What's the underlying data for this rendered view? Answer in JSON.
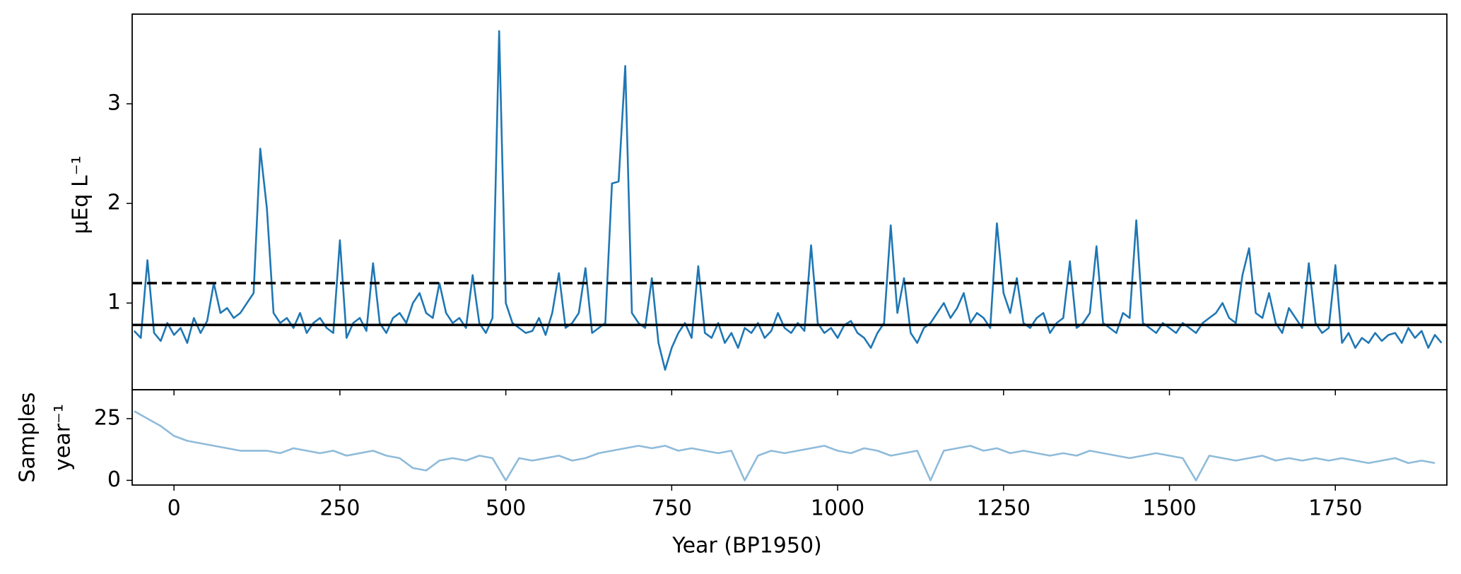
{
  "chart_data": [
    {
      "type": "line",
      "ylabel": "μEq L⁻¹",
      "color": "#1f77b4",
      "xlim": [
        -63,
        1918
      ],
      "ylim": [
        0.13,
        3.9
      ],
      "yticks": [
        1,
        2,
        3
      ],
      "hlines": [
        {
          "value": 0.78,
          "style": "solid"
        },
        {
          "value": 1.2,
          "style": "dashed"
        }
      ],
      "x": [
        -60,
        -50,
        -40,
        -30,
        -20,
        -10,
        0,
        10,
        20,
        30,
        40,
        50,
        60,
        70,
        80,
        90,
        100,
        110,
        120,
        130,
        140,
        150,
        160,
        170,
        180,
        190,
        200,
        210,
        220,
        230,
        240,
        250,
        260,
        270,
        280,
        290,
        300,
        310,
        320,
        330,
        340,
        350,
        360,
        370,
        380,
        390,
        400,
        410,
        420,
        430,
        440,
        450,
        460,
        470,
        480,
        490,
        500,
        510,
        520,
        530,
        540,
        550,
        560,
        570,
        580,
        590,
        600,
        610,
        620,
        630,
        640,
        650,
        660,
        670,
        680,
        690,
        700,
        710,
        720,
        730,
        740,
        750,
        760,
        770,
        780,
        790,
        800,
        810,
        820,
        830,
        840,
        850,
        860,
        870,
        880,
        890,
        900,
        910,
        920,
        930,
        940,
        950,
        960,
        970,
        980,
        990,
        1000,
        1010,
        1020,
        1030,
        1040,
        1050,
        1060,
        1070,
        1080,
        1090,
        1100,
        1110,
        1120,
        1130,
        1140,
        1150,
        1160,
        1170,
        1180,
        1190,
        1200,
        1210,
        1220,
        1230,
        1240,
        1250,
        1260,
        1270,
        1280,
        1290,
        1300,
        1310,
        1320,
        1330,
        1340,
        1350,
        1360,
        1370,
        1380,
        1390,
        1400,
        1410,
        1420,
        1430,
        1440,
        1450,
        1460,
        1470,
        1480,
        1490,
        1500,
        1510,
        1520,
        1530,
        1540,
        1550,
        1560,
        1570,
        1580,
        1590,
        1600,
        1610,
        1620,
        1630,
        1640,
        1650,
        1660,
        1670,
        1680,
        1690,
        1700,
        1710,
        1720,
        1730,
        1740,
        1750,
        1760,
        1770,
        1780,
        1790,
        1800,
        1810,
        1820,
        1830,
        1840,
        1850,
        1860,
        1870,
        1880,
        1890,
        1900,
        1910
      ],
      "values": [
        0.72,
        0.65,
        1.43,
        0.7,
        0.62,
        0.8,
        0.68,
        0.75,
        0.6,
        0.85,
        0.7,
        0.82,
        1.2,
        0.9,
        0.95,
        0.85,
        0.9,
        1.0,
        1.1,
        2.55,
        1.95,
        0.9,
        0.8,
        0.85,
        0.75,
        0.9,
        0.7,
        0.8,
        0.85,
        0.75,
        0.7,
        1.63,
        0.65,
        0.8,
        0.85,
        0.72,
        1.4,
        0.8,
        0.7,
        0.85,
        0.9,
        0.8,
        1.0,
        1.1,
        0.9,
        0.85,
        1.2,
        0.9,
        0.8,
        0.85,
        0.75,
        1.28,
        0.8,
        0.7,
        0.85,
        3.73,
        1.0,
        0.8,
        0.75,
        0.7,
        0.72,
        0.85,
        0.68,
        0.9,
        1.3,
        0.75,
        0.8,
        0.9,
        1.35,
        0.7,
        0.75,
        0.8,
        2.2,
        2.22,
        3.38,
        0.9,
        0.8,
        0.75,
        1.25,
        0.6,
        0.33,
        0.55,
        0.7,
        0.8,
        0.65,
        1.37,
        0.7,
        0.65,
        0.8,
        0.6,
        0.7,
        0.55,
        0.75,
        0.7,
        0.8,
        0.65,
        0.72,
        0.9,
        0.75,
        0.7,
        0.8,
        0.72,
        1.58,
        0.8,
        0.7,
        0.75,
        0.65,
        0.78,
        0.82,
        0.7,
        0.65,
        0.55,
        0.7,
        0.8,
        1.78,
        0.9,
        1.25,
        0.7,
        0.6,
        0.75,
        0.8,
        0.9,
        1.0,
        0.85,
        0.95,
        1.1,
        0.8,
        0.9,
        0.85,
        0.75,
        1.8,
        1.1,
        0.9,
        1.25,
        0.8,
        0.75,
        0.85,
        0.9,
        0.7,
        0.8,
        0.85,
        1.42,
        0.75,
        0.8,
        0.9,
        1.57,
        0.8,
        0.75,
        0.7,
        0.9,
        0.85,
        1.83,
        0.8,
        0.75,
        0.7,
        0.8,
        0.75,
        0.7,
        0.8,
        0.75,
        0.7,
        0.8,
        0.85,
        0.9,
        1.0,
        0.85,
        0.8,
        1.28,
        1.55,
        0.9,
        0.85,
        1.1,
        0.8,
        0.7,
        0.95,
        0.85,
        0.75,
        1.4,
        0.8,
        0.7,
        0.75,
        1.38,
        0.6,
        0.7,
        0.55,
        0.65,
        0.6,
        0.7,
        0.62,
        0.68,
        0.7,
        0.6,
        0.75,
        0.65,
        0.72,
        0.55,
        0.68,
        0.6
      ]
    },
    {
      "type": "line",
      "ylabel": [
        "Samples",
        "year⁻¹"
      ],
      "xlabel": "Year (BP1950)",
      "color": "#8fbbd9",
      "xlim": [
        -63,
        1918
      ],
      "ylim": [
        -1.9,
        36.7
      ],
      "yticks": [
        0,
        25
      ],
      "xticks": [
        0,
        250,
        500,
        750,
        1000,
        1250,
        1500,
        1750
      ],
      "x": [
        -60,
        -40,
        -20,
        0,
        20,
        40,
        60,
        80,
        100,
        120,
        140,
        160,
        180,
        200,
        220,
        240,
        260,
        280,
        300,
        320,
        340,
        360,
        380,
        400,
        420,
        440,
        460,
        480,
        500,
        520,
        540,
        560,
        580,
        600,
        620,
        640,
        660,
        680,
        700,
        720,
        740,
        760,
        780,
        800,
        820,
        840,
        860,
        880,
        900,
        920,
        940,
        960,
        980,
        1000,
        1020,
        1040,
        1060,
        1080,
        1100,
        1120,
        1140,
        1160,
        1180,
        1200,
        1220,
        1240,
        1260,
        1280,
        1300,
        1320,
        1340,
        1360,
        1380,
        1400,
        1420,
        1440,
        1460,
        1480,
        1500,
        1520,
        1540,
        1560,
        1580,
        1600,
        1620,
        1640,
        1660,
        1680,
        1700,
        1720,
        1740,
        1760,
        1780,
        1800,
        1820,
        1840,
        1860,
        1880,
        1900
      ],
      "values": [
        28,
        25,
        22,
        18,
        16,
        15,
        14,
        13,
        12,
        12,
        12,
        11,
        13,
        12,
        11,
        12,
        10,
        11,
        12,
        10,
        9,
        5,
        4,
        8,
        9,
        8,
        10,
        9,
        0,
        9,
        8,
        9,
        10,
        8,
        9,
        11,
        12,
        13,
        14,
        13,
        14,
        12,
        13,
        12,
        11,
        12,
        0,
        10,
        12,
        11,
        12,
        13,
        14,
        12,
        11,
        13,
        12,
        10,
        11,
        12,
        0,
        12,
        13,
        14,
        12,
        13,
        11,
        12,
        11,
        10,
        11,
        10,
        12,
        11,
        10,
        9,
        10,
        11,
        10,
        9,
        0,
        10,
        9,
        8,
        9,
        10,
        8,
        9,
        8,
        9,
        8,
        9,
        8,
        7,
        8,
        9,
        7,
        8,
        7
      ]
    }
  ]
}
